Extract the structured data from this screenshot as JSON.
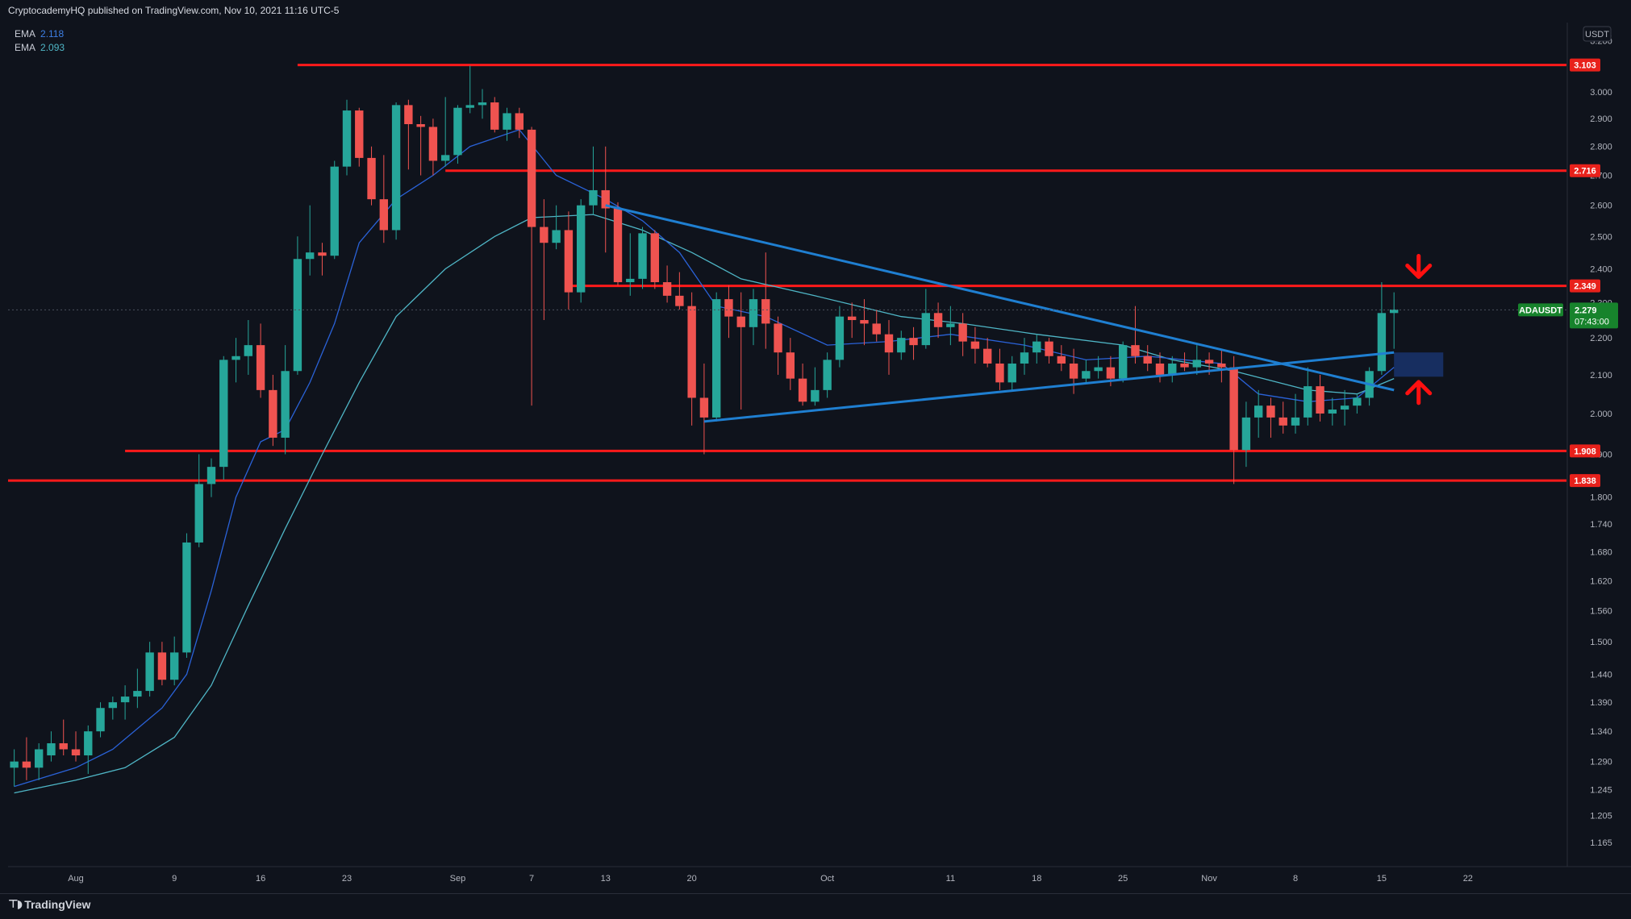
{
  "header": {
    "publish_text": "CryptocademyHQ published on TradingView.com, Nov 10, 2021 11:16 UTC-5"
  },
  "legend": {
    "ema_1_name": "EMA",
    "ema_1_value": "2.118",
    "ema_2_name": "EMA",
    "ema_2_value": "2.093"
  },
  "footer": {
    "brand": "TradingView",
    "logo_icon": "tradingview-logo-icon"
  },
  "colors": {
    "background": "#0f131c",
    "up": "#26a69a",
    "down": "#ef5350",
    "level_line": "#ff1a1a",
    "trendline": "#1f7fd1",
    "ema_fast": "#2a62d8",
    "ema_slow": "#4fb6c6",
    "last_price_badge": "#17832c"
  },
  "chart_data": {
    "type": "candlestick",
    "symbol": "ADAUSDT",
    "currency": "USDT",
    "axis_top_label": "3",
    "last_price": "2.279",
    "countdown": "07:43:00",
    "y_ticks": [
      "3.200",
      "3.000",
      "2.900",
      "2.800",
      "2.700",
      "2.600",
      "2.500",
      "2.400",
      "2.300",
      "2.200",
      "2.100",
      "2.000",
      "1.900",
      "1.800",
      "1.740",
      "1.680",
      "1.620",
      "1.560",
      "1.500",
      "1.440",
      "1.390",
      "1.340",
      "1.290",
      "1.245",
      "1.205",
      "1.165"
    ],
    "y_scale": "log",
    "ylim": [
      1.13,
      3.26
    ],
    "x_ticks": [
      {
        "label": "Aug",
        "date": "2021-08-01"
      },
      {
        "label": "9",
        "date": "2021-08-09"
      },
      {
        "label": "16",
        "date": "2021-08-16"
      },
      {
        "label": "23",
        "date": "2021-08-23"
      },
      {
        "label": "Sep",
        "date": "2021-09-01"
      },
      {
        "label": "7",
        "date": "2021-09-07"
      },
      {
        "label": "13",
        "date": "2021-09-13"
      },
      {
        "label": "20",
        "date": "2021-09-20"
      },
      {
        "label": "Oct",
        "date": "2021-10-01"
      },
      {
        "label": "11",
        "date": "2021-10-11"
      },
      {
        "label": "18",
        "date": "2021-10-18"
      },
      {
        "label": "25",
        "date": "2021-10-25"
      },
      {
        "label": "Nov",
        "date": "2021-11-01"
      },
      {
        "label": "8",
        "date": "2021-11-08"
      },
      {
        "label": "15",
        "date": "2021-11-15"
      },
      {
        "label": "22",
        "date": "2021-11-22"
      }
    ],
    "xlim": [
      "2021-07-26T12:00",
      "2021-11-30"
    ],
    "candles_columns": [
      "date",
      "open",
      "high",
      "low",
      "close"
    ],
    "candles": [
      [
        "2021-07-27",
        1.28,
        1.31,
        1.25,
        1.29
      ],
      [
        "2021-07-28",
        1.29,
        1.33,
        1.26,
        1.28
      ],
      [
        "2021-07-29",
        1.28,
        1.32,
        1.26,
        1.31
      ],
      [
        "2021-07-30",
        1.3,
        1.34,
        1.29,
        1.32
      ],
      [
        "2021-07-31",
        1.32,
        1.36,
        1.3,
        1.31
      ],
      [
        "2021-08-01",
        1.31,
        1.34,
        1.29,
        1.3
      ],
      [
        "2021-08-02",
        1.3,
        1.35,
        1.27,
        1.34
      ],
      [
        "2021-08-03",
        1.34,
        1.39,
        1.33,
        1.38
      ],
      [
        "2021-08-04",
        1.38,
        1.4,
        1.36,
        1.39
      ],
      [
        "2021-08-05",
        1.39,
        1.42,
        1.36,
        1.4
      ],
      [
        "2021-08-06",
        1.4,
        1.45,
        1.38,
        1.41
      ],
      [
        "2021-08-07",
        1.41,
        1.5,
        1.4,
        1.48
      ],
      [
        "2021-08-08",
        1.48,
        1.5,
        1.42,
        1.43
      ],
      [
        "2021-08-09",
        1.43,
        1.51,
        1.42,
        1.48
      ],
      [
        "2021-08-10",
        1.48,
        1.72,
        1.47,
        1.7
      ],
      [
        "2021-08-11",
        1.7,
        1.9,
        1.69,
        1.83
      ],
      [
        "2021-08-12",
        1.83,
        1.89,
        1.8,
        1.87
      ],
      [
        "2021-08-13",
        1.87,
        2.15,
        1.84,
        2.14
      ],
      [
        "2021-08-14",
        2.14,
        2.2,
        2.08,
        2.15
      ],
      [
        "2021-08-15",
        2.15,
        2.25,
        2.1,
        2.18
      ],
      [
        "2021-08-16",
        2.18,
        2.24,
        2.04,
        2.06
      ],
      [
        "2021-08-17",
        2.06,
        2.1,
        1.92,
        1.94
      ],
      [
        "2021-08-18",
        1.94,
        2.18,
        1.9,
        2.11
      ],
      [
        "2021-08-19",
        2.11,
        2.5,
        2.1,
        2.43
      ],
      [
        "2021-08-20",
        2.43,
        2.6,
        2.38,
        2.45
      ],
      [
        "2021-08-21",
        2.45,
        2.48,
        2.38,
        2.44
      ],
      [
        "2021-08-22",
        2.44,
        2.75,
        2.43,
        2.73
      ],
      [
        "2021-08-23",
        2.73,
        2.97,
        2.7,
        2.93
      ],
      [
        "2021-08-24",
        2.93,
        2.94,
        2.73,
        2.76
      ],
      [
        "2021-08-25",
        2.76,
        2.8,
        2.6,
        2.62
      ],
      [
        "2021-08-26",
        2.62,
        2.77,
        2.48,
        2.52
      ],
      [
        "2021-08-27",
        2.52,
        2.96,
        2.49,
        2.95
      ],
      [
        "2021-08-28",
        2.95,
        2.97,
        2.72,
        2.88
      ],
      [
        "2021-08-29",
        2.88,
        2.91,
        2.7,
        2.87
      ],
      [
        "2021-08-30",
        2.87,
        2.9,
        2.7,
        2.75
      ],
      [
        "2021-08-31",
        2.75,
        2.98,
        2.73,
        2.77
      ],
      [
        "2021-09-01",
        2.77,
        2.95,
        2.74,
        2.94
      ],
      [
        "2021-09-02",
        2.94,
        3.1,
        2.92,
        2.95
      ],
      [
        "2021-09-03",
        2.95,
        3.01,
        2.9,
        2.96
      ],
      [
        "2021-09-04",
        2.96,
        2.98,
        2.85,
        2.86
      ],
      [
        "2021-09-05",
        2.86,
        2.94,
        2.82,
        2.92
      ],
      [
        "2021-09-06",
        2.92,
        2.94,
        2.83,
        2.86
      ],
      [
        "2021-09-07",
        2.86,
        2.87,
        2.02,
        2.53
      ],
      [
        "2021-09-08",
        2.53,
        2.62,
        2.25,
        2.48
      ],
      [
        "2021-09-09",
        2.48,
        2.6,
        2.46,
        2.52
      ],
      [
        "2021-09-10",
        2.52,
        2.58,
        2.28,
        2.33
      ],
      [
        "2021-09-11",
        2.33,
        2.62,
        2.3,
        2.6
      ],
      [
        "2021-09-12",
        2.6,
        2.8,
        2.57,
        2.65
      ],
      [
        "2021-09-13",
        2.65,
        2.8,
        2.45,
        2.59
      ],
      [
        "2021-09-14",
        2.59,
        2.61,
        2.35,
        2.36
      ],
      [
        "2021-09-15",
        2.36,
        2.51,
        2.32,
        2.37
      ],
      [
        "2021-09-16",
        2.37,
        2.53,
        2.34,
        2.51
      ],
      [
        "2021-09-17",
        2.51,
        2.52,
        2.34,
        2.36
      ],
      [
        "2021-09-18",
        2.36,
        2.41,
        2.3,
        2.32
      ],
      [
        "2021-09-19",
        2.32,
        2.39,
        2.28,
        2.29
      ],
      [
        "2021-09-20",
        2.29,
        2.33,
        1.97,
        2.04
      ],
      [
        "2021-09-21",
        2.04,
        2.13,
        1.9,
        1.99
      ],
      [
        "2021-09-22",
        1.99,
        2.33,
        1.98,
        2.31
      ],
      [
        "2021-09-23",
        2.31,
        2.35,
        2.2,
        2.26
      ],
      [
        "2021-09-24",
        2.26,
        2.33,
        2.01,
        2.23
      ],
      [
        "2021-09-25",
        2.23,
        2.34,
        2.18,
        2.31
      ],
      [
        "2021-09-26",
        2.31,
        2.45,
        2.17,
        2.24
      ],
      [
        "2021-09-27",
        2.24,
        2.26,
        2.1,
        2.16
      ],
      [
        "2021-09-28",
        2.16,
        2.2,
        2.06,
        2.09
      ],
      [
        "2021-09-29",
        2.09,
        2.13,
        2.02,
        2.03
      ],
      [
        "2021-09-30",
        2.03,
        2.12,
        2.02,
        2.06
      ],
      [
        "2021-10-01",
        2.06,
        2.16,
        2.04,
        2.14
      ],
      [
        "2021-10-02",
        2.14,
        2.29,
        2.12,
        2.26
      ],
      [
        "2021-10-03",
        2.26,
        2.3,
        2.2,
        2.25
      ],
      [
        "2021-10-04",
        2.25,
        2.31,
        2.18,
        2.24
      ],
      [
        "2021-10-05",
        2.24,
        2.28,
        2.19,
        2.21
      ],
      [
        "2021-10-06",
        2.21,
        2.25,
        2.1,
        2.16
      ],
      [
        "2021-10-07",
        2.16,
        2.22,
        2.14,
        2.2
      ],
      [
        "2021-10-08",
        2.2,
        2.23,
        2.14,
        2.18
      ],
      [
        "2021-10-09",
        2.18,
        2.34,
        2.17,
        2.27
      ],
      [
        "2021-10-10",
        2.27,
        2.3,
        2.2,
        2.23
      ],
      [
        "2021-10-11",
        2.23,
        2.29,
        2.18,
        2.24
      ],
      [
        "2021-10-12",
        2.24,
        2.27,
        2.15,
        2.19
      ],
      [
        "2021-10-13",
        2.19,
        2.23,
        2.13,
        2.17
      ],
      [
        "2021-10-14",
        2.17,
        2.2,
        2.12,
        2.13
      ],
      [
        "2021-10-15",
        2.13,
        2.17,
        2.06,
        2.08
      ],
      [
        "2021-10-16",
        2.08,
        2.15,
        2.06,
        2.13
      ],
      [
        "2021-10-17",
        2.13,
        2.2,
        2.1,
        2.16
      ],
      [
        "2021-10-18",
        2.16,
        2.21,
        2.13,
        2.19
      ],
      [
        "2021-10-19",
        2.19,
        2.2,
        2.13,
        2.15
      ],
      [
        "2021-10-20",
        2.15,
        2.18,
        2.11,
        2.13
      ],
      [
        "2021-10-21",
        2.13,
        2.17,
        2.05,
        2.09
      ],
      [
        "2021-10-22",
        2.09,
        2.14,
        2.08,
        2.11
      ],
      [
        "2021-10-23",
        2.11,
        2.15,
        2.09,
        2.12
      ],
      [
        "2021-10-24",
        2.12,
        2.15,
        2.07,
        2.09
      ],
      [
        "2021-10-25",
        2.09,
        2.19,
        2.08,
        2.18
      ],
      [
        "2021-10-26",
        2.18,
        2.29,
        2.13,
        2.15
      ],
      [
        "2021-10-27",
        2.15,
        2.18,
        2.11,
        2.13
      ],
      [
        "2021-10-28",
        2.13,
        2.16,
        2.08,
        2.1
      ],
      [
        "2021-10-29",
        2.1,
        2.15,
        2.08,
        2.13
      ],
      [
        "2021-10-30",
        2.13,
        2.16,
        2.11,
        2.12
      ],
      [
        "2021-10-31",
        2.12,
        2.18,
        2.1,
        2.14
      ],
      [
        "2021-11-01",
        2.14,
        2.16,
        2.1,
        2.13
      ],
      [
        "2021-11-02",
        2.13,
        2.17,
        2.08,
        2.12
      ],
      [
        "2021-11-03",
        2.12,
        2.15,
        1.83,
        1.91
      ],
      [
        "2021-11-04",
        1.91,
        2.03,
        1.87,
        1.99
      ],
      [
        "2021-11-05",
        1.99,
        2.06,
        1.94,
        2.02
      ],
      [
        "2021-11-06",
        2.02,
        2.04,
        1.94,
        1.99
      ],
      [
        "2021-11-07",
        1.99,
        2.03,
        1.95,
        1.97
      ],
      [
        "2021-11-08",
        1.97,
        2.05,
        1.95,
        1.99
      ],
      [
        "2021-11-09",
        1.99,
        2.12,
        1.97,
        2.07
      ],
      [
        "2021-11-10",
        2.07,
        2.1,
        1.98,
        2.0
      ],
      [
        "2021-11-11",
        2.0,
        2.04,
        1.97,
        2.01
      ],
      [
        "2021-11-12",
        2.01,
        2.06,
        1.97,
        2.02
      ],
      [
        "2021-11-13",
        2.02,
        2.05,
        2.0,
        2.04
      ],
      [
        "2021-11-14",
        2.04,
        2.12,
        2.02,
        2.11
      ],
      [
        "2021-11-15",
        2.11,
        2.36,
        2.1,
        2.27
      ],
      [
        "2021-11-16",
        2.27,
        2.33,
        2.17,
        2.28
      ]
    ],
    "ema_fast": [
      [
        "2021-07-27",
        1.25
      ],
      [
        "2021-08-01",
        1.28
      ],
      [
        "2021-08-04",
        1.31
      ],
      [
        "2021-08-08",
        1.38
      ],
      [
        "2021-08-10",
        1.44
      ],
      [
        "2021-08-12",
        1.6
      ],
      [
        "2021-08-14",
        1.8
      ],
      [
        "2021-08-16",
        1.93
      ],
      [
        "2021-08-18",
        1.96
      ],
      [
        "2021-08-20",
        2.08
      ],
      [
        "2021-08-22",
        2.24
      ],
      [
        "2021-08-24",
        2.48
      ],
      [
        "2021-08-27",
        2.62
      ],
      [
        "2021-08-30",
        2.7
      ],
      [
        "2021-09-02",
        2.8
      ],
      [
        "2021-09-06",
        2.86
      ],
      [
        "2021-09-09",
        2.7
      ],
      [
        "2021-09-13",
        2.62
      ],
      [
        "2021-09-16",
        2.55
      ],
      [
        "2021-09-19",
        2.45
      ],
      [
        "2021-09-22",
        2.29
      ],
      [
        "2021-09-26",
        2.26
      ],
      [
        "2021-10-01",
        2.18
      ],
      [
        "2021-10-06",
        2.19
      ],
      [
        "2021-10-11",
        2.21
      ],
      [
        "2021-10-17",
        2.18
      ],
      [
        "2021-10-22",
        2.14
      ],
      [
        "2021-10-27",
        2.15
      ],
      [
        "2021-11-02",
        2.13
      ],
      [
        "2021-11-05",
        2.05
      ],
      [
        "2021-11-09",
        2.03
      ],
      [
        "2021-11-13",
        2.04
      ],
      [
        "2021-11-16",
        2.12
      ]
    ],
    "ema_slow": [
      [
        "2021-07-27",
        1.24
      ],
      [
        "2021-08-01",
        1.26
      ],
      [
        "2021-08-05",
        1.28
      ],
      [
        "2021-08-09",
        1.33
      ],
      [
        "2021-08-12",
        1.42
      ],
      [
        "2021-08-15",
        1.57
      ],
      [
        "2021-08-18",
        1.73
      ],
      [
        "2021-08-21",
        1.9
      ],
      [
        "2021-08-24",
        2.08
      ],
      [
        "2021-08-27",
        2.26
      ],
      [
        "2021-08-31",
        2.4
      ],
      [
        "2021-09-04",
        2.5
      ],
      [
        "2021-09-07",
        2.56
      ],
      [
        "2021-09-12",
        2.57
      ],
      [
        "2021-09-16",
        2.52
      ],
      [
        "2021-09-20",
        2.45
      ],
      [
        "2021-09-24",
        2.37
      ],
      [
        "2021-09-30",
        2.32
      ],
      [
        "2021-10-07",
        2.26
      ],
      [
        "2021-10-12",
        2.24
      ],
      [
        "2021-10-18",
        2.21
      ],
      [
        "2021-10-25",
        2.18
      ],
      [
        "2021-10-29",
        2.14
      ],
      [
        "2021-11-03",
        2.11
      ],
      [
        "2021-11-09",
        2.06
      ],
      [
        "2021-11-13",
        2.05
      ],
      [
        "2021-11-16",
        2.09
      ]
    ],
    "horizontal_levels": [
      {
        "price": 3.103,
        "label": "3.103",
        "from": "2021-08-19"
      },
      {
        "price": 2.716,
        "label": "2.716",
        "from": "2021-08-31"
      },
      {
        "price": 2.349,
        "label": "2.349",
        "from": "2021-09-10"
      },
      {
        "price": 1.908,
        "label": "1.908",
        "from": "2021-08-05"
      },
      {
        "price": 1.838,
        "label": "1.838",
        "from": "2021-07-26T12:00"
      }
    ],
    "trendlines": [
      {
        "from": [
          "2021-09-13",
          2.6
        ],
        "to": [
          "2021-11-16",
          2.06
        ]
      },
      {
        "from": [
          "2021-09-21",
          1.98
        ],
        "to": [
          "2021-11-16",
          2.16
        ]
      }
    ],
    "highlight_zone": {
      "from": "2021-11-16",
      "to": "2021-11-20",
      "low": 2.095,
      "high": 2.16
    },
    "arrows": [
      {
        "direction": "down",
        "date": "2021-11-18",
        "price": 2.4
      },
      {
        "direction": "up",
        "date": "2021-11-18",
        "price": 2.06
      }
    ]
  }
}
